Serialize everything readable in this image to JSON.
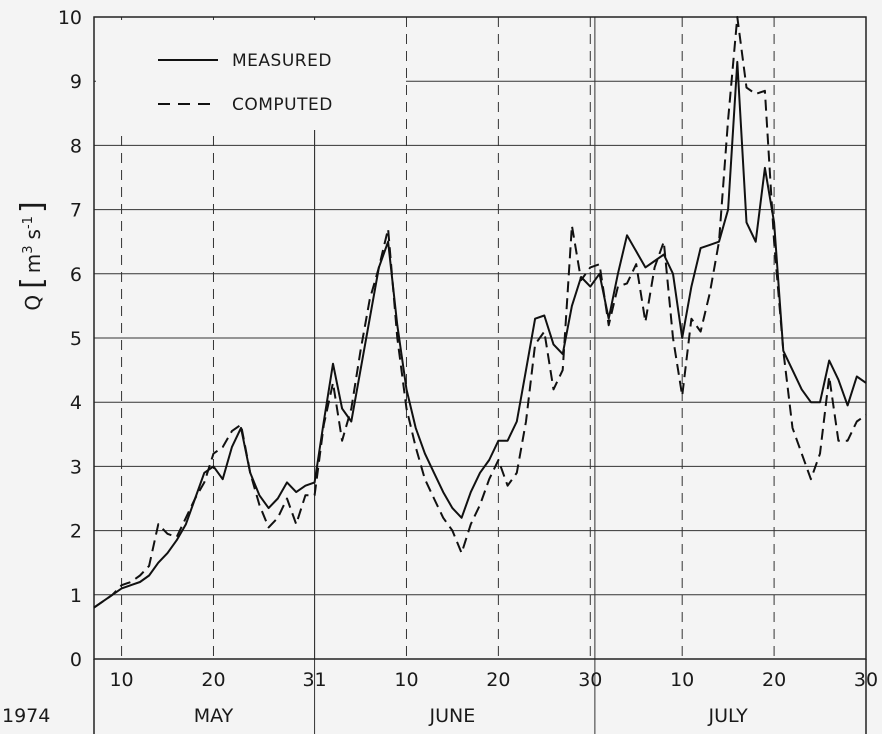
{
  "chart_data": {
    "type": "line",
    "year": "1974",
    "ylabel": "Q [m³ s⁻¹]",
    "ylabel_parts": {
      "q": "Q",
      "m": "m",
      "m_exp": "3",
      "s": "s",
      "s_exp": "-1"
    },
    "ylim": [
      0,
      10
    ],
    "yticks": [
      "0",
      "1",
      "2",
      "3",
      "4",
      "5",
      "6",
      "7",
      "8",
      "9",
      "10"
    ],
    "xlim": [
      "1974-05-07",
      "1974-07-30"
    ],
    "xticks": [
      {
        "date": "1974-05-10",
        "label": "10"
      },
      {
        "date": "1974-05-20",
        "label": "20"
      },
      {
        "date": "1974-05-31",
        "label": "31"
      },
      {
        "date": "1974-06-10",
        "label": "10"
      },
      {
        "date": "1974-06-20",
        "label": "20"
      },
      {
        "date": "1974-06-30",
        "label": "30"
      },
      {
        "date": "1974-07-10",
        "label": "10"
      },
      {
        "date": "1974-07-20",
        "label": "20"
      },
      {
        "date": "1974-07-30",
        "label": "30"
      }
    ],
    "months": [
      {
        "label": "MAY",
        "center": "1974-05-20"
      },
      {
        "label": "JUNE",
        "center": "1974-06-15"
      },
      {
        "label": "JULY",
        "center": "1974-07-15"
      }
    ],
    "grid": true,
    "legend_position": "top-left",
    "series": [
      {
        "name": "MEASURED",
        "style": "solid",
        "x": [
          "1974-05-07",
          "1974-05-09",
          "1974-05-10",
          "1974-05-11",
          "1974-05-12",
          "1974-05-13",
          "1974-05-14",
          "1974-05-15",
          "1974-05-16",
          "1974-05-17",
          "1974-05-18",
          "1974-05-19",
          "1974-05-20",
          "1974-05-21",
          "1974-05-22",
          "1974-05-23",
          "1974-05-24",
          "1974-05-25",
          "1974-05-26",
          "1974-05-27",
          "1974-05-28",
          "1974-05-29",
          "1974-05-30",
          "1974-05-31",
          "1974-06-01",
          "1974-06-02",
          "1974-06-03",
          "1974-06-04",
          "1974-06-05",
          "1974-06-06",
          "1974-06-07",
          "1974-06-08",
          "1974-06-09",
          "1974-06-10",
          "1974-06-11",
          "1974-06-12",
          "1974-06-13",
          "1974-06-14",
          "1974-06-15",
          "1974-06-16",
          "1974-06-17",
          "1974-06-18",
          "1974-06-19",
          "1974-06-20",
          "1974-06-21",
          "1974-06-22",
          "1974-06-23",
          "1974-06-24",
          "1974-06-25",
          "1974-06-26",
          "1974-06-27",
          "1974-06-28",
          "1974-06-29",
          "1974-06-30",
          "1974-07-01",
          "1974-07-02",
          "1974-07-03",
          "1974-07-04",
          "1974-07-05",
          "1974-07-06",
          "1974-07-07",
          "1974-07-08",
          "1974-07-09",
          "1974-07-10",
          "1974-07-11",
          "1974-07-12",
          "1974-07-13",
          "1974-07-14",
          "1974-07-15",
          "1974-07-16",
          "1974-07-17",
          "1974-07-18",
          "1974-07-19",
          "1974-07-20",
          "1974-07-21",
          "1974-07-22",
          "1974-07-23",
          "1974-07-24",
          "1974-07-25",
          "1974-07-26",
          "1974-07-27",
          "1974-07-28",
          "1974-07-29",
          "1974-07-30"
        ],
        "y": [
          0.8,
          1.0,
          1.1,
          1.15,
          1.2,
          1.3,
          1.5,
          1.65,
          1.85,
          2.1,
          2.5,
          2.9,
          3.0,
          2.8,
          3.3,
          3.6,
          2.9,
          2.55,
          2.35,
          2.5,
          2.75,
          2.6,
          2.7,
          2.75,
          3.7,
          4.6,
          3.9,
          3.7,
          4.5,
          5.3,
          6.1,
          6.5,
          5.2,
          4.2,
          3.6,
          3.2,
          2.9,
          2.6,
          2.35,
          2.2,
          2.6,
          2.9,
          3.1,
          3.4,
          3.4,
          3.7,
          4.5,
          5.3,
          5.35,
          4.9,
          4.75,
          5.5,
          5.95,
          5.8,
          6.0,
          5.3,
          6.0,
          6.6,
          6.35,
          6.1,
          6.2,
          6.3,
          6.0,
          5.0,
          5.8,
          6.4,
          6.45,
          6.5,
          7.0,
          9.3,
          6.8,
          6.5,
          7.65,
          6.8,
          4.8,
          4.5,
          4.2,
          4.0,
          4.0,
          4.65,
          4.35,
          3.95,
          4.4,
          4.3
        ]
      },
      {
        "name": "COMPUTED",
        "style": "dashed",
        "x": [
          "1974-05-07",
          "1974-05-09",
          "1974-05-10",
          "1974-05-11",
          "1974-05-12",
          "1974-05-13",
          "1974-05-14",
          "1974-05-15",
          "1974-05-16",
          "1974-05-17",
          "1974-05-18",
          "1974-05-19",
          "1974-05-20",
          "1974-05-21",
          "1974-05-22",
          "1974-05-23",
          "1974-05-24",
          "1974-05-25",
          "1974-05-26",
          "1974-05-27",
          "1974-05-28",
          "1974-05-29",
          "1974-05-30",
          "1974-05-31",
          "1974-06-01",
          "1974-06-02",
          "1974-06-03",
          "1974-06-04",
          "1974-06-05",
          "1974-06-06",
          "1974-06-07",
          "1974-06-08",
          "1974-06-09",
          "1974-06-10",
          "1974-06-11",
          "1974-06-12",
          "1974-06-13",
          "1974-06-14",
          "1974-06-15",
          "1974-06-16",
          "1974-06-17",
          "1974-06-18",
          "1974-06-19",
          "1974-06-20",
          "1974-06-21",
          "1974-06-22",
          "1974-06-23",
          "1974-06-24",
          "1974-06-25",
          "1974-06-26",
          "1974-06-27",
          "1974-06-28",
          "1974-06-29",
          "1974-06-30",
          "1974-07-01",
          "1974-07-02",
          "1974-07-03",
          "1974-07-04",
          "1974-07-05",
          "1974-07-06",
          "1974-07-07",
          "1974-07-08",
          "1974-07-09",
          "1974-07-10",
          "1974-07-11",
          "1974-07-12",
          "1974-07-13",
          "1974-07-14",
          "1974-07-15",
          "1974-07-16",
          "1974-07-17",
          "1974-07-18",
          "1974-07-19",
          "1974-07-20",
          "1974-07-21",
          "1974-07-22",
          "1974-07-23",
          "1974-07-24",
          "1974-07-25",
          "1974-07-26",
          "1974-07-27",
          "1974-07-28",
          "1974-07-29",
          "1974-07-30"
        ],
        "y": [
          0.8,
          1.0,
          1.15,
          1.2,
          1.3,
          1.45,
          2.1,
          1.95,
          1.9,
          2.2,
          2.5,
          2.75,
          3.2,
          3.3,
          3.55,
          3.65,
          2.9,
          2.4,
          2.05,
          2.2,
          2.5,
          2.1,
          2.55,
          2.55,
          3.65,
          4.3,
          3.4,
          3.9,
          4.8,
          5.6,
          6.1,
          6.7,
          5.0,
          3.9,
          3.3,
          2.8,
          2.5,
          2.2,
          2.0,
          1.65,
          2.1,
          2.4,
          2.8,
          3.1,
          2.7,
          2.9,
          3.7,
          4.9,
          5.1,
          4.2,
          4.5,
          6.75,
          5.9,
          6.1,
          6.15,
          5.2,
          5.8,
          5.85,
          6.15,
          5.25,
          6.1,
          6.5,
          5.0,
          4.1,
          5.3,
          5.1,
          5.7,
          6.5,
          8.4,
          10.0,
          8.9,
          8.8,
          8.85,
          6.5,
          4.8,
          3.6,
          3.2,
          2.8,
          3.2,
          4.4,
          3.4,
          3.4,
          3.7,
          3.8
        ]
      }
    ]
  }
}
